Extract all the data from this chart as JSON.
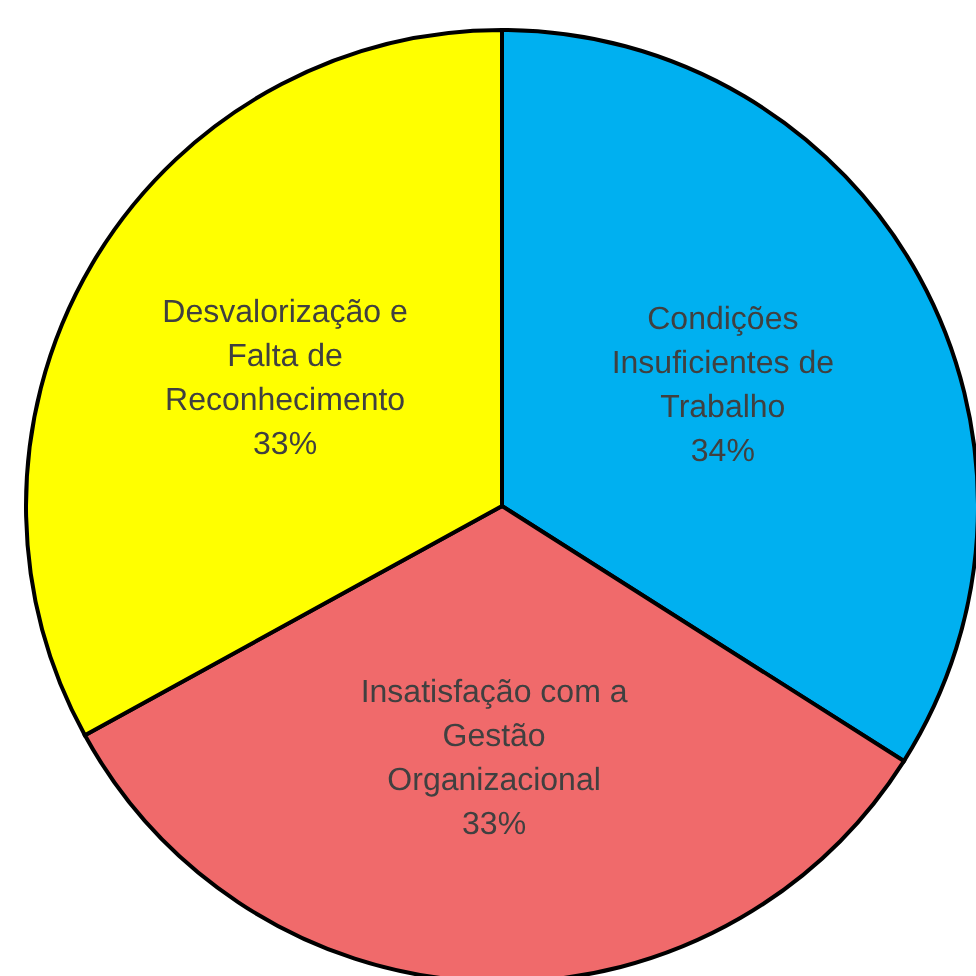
{
  "chart_data": {
    "type": "pie",
    "categories": [
      "Condições Insuficientes de Trabalho",
      "Insatisfação com a Gestão Organizacional",
      "Desvalorização e Falta de Reconhecimento"
    ],
    "values": [
      34,
      33,
      33
    ],
    "colors": [
      "#00b0f0",
      "#f06a6b",
      "#ffff00"
    ],
    "value_labels": [
      "34%",
      "33%",
      "33%"
    ]
  }
}
